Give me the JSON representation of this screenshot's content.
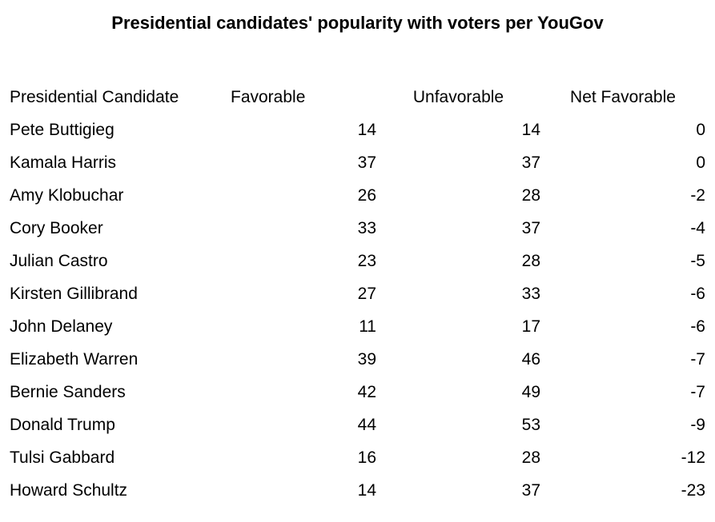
{
  "page": {
    "background": "#ffffff",
    "text_color": "#000000"
  },
  "title": "Presidential candidates' popularity with voters per YouGov",
  "chart_data": {
    "type": "table",
    "title": "Presidential candidates' popularity with voters per YouGov",
    "columns": [
      "Presidential Candidate",
      "Favorable",
      "Unfavorable",
      "Net Favorable"
    ],
    "rows": [
      [
        "Pete Buttigieg",
        14,
        14,
        0
      ],
      [
        "Kamala Harris",
        37,
        37,
        0
      ],
      [
        "Amy Klobuchar",
        26,
        28,
        -2
      ],
      [
        "Cory Booker",
        33,
        37,
        -4
      ],
      [
        "Julian Castro",
        23,
        28,
        -5
      ],
      [
        "Kirsten Gillibrand",
        27,
        33,
        -6
      ],
      [
        "John Delaney",
        11,
        17,
        -6
      ],
      [
        "Elizabeth Warren",
        39,
        46,
        -7
      ],
      [
        "Bernie Sanders",
        42,
        49,
        -7
      ],
      [
        "Donald Trump",
        44,
        53,
        -9
      ],
      [
        "Tulsi Gabbard",
        16,
        28,
        -12
      ],
      [
        "Howard Schultz",
        14,
        37,
        -23
      ]
    ]
  }
}
